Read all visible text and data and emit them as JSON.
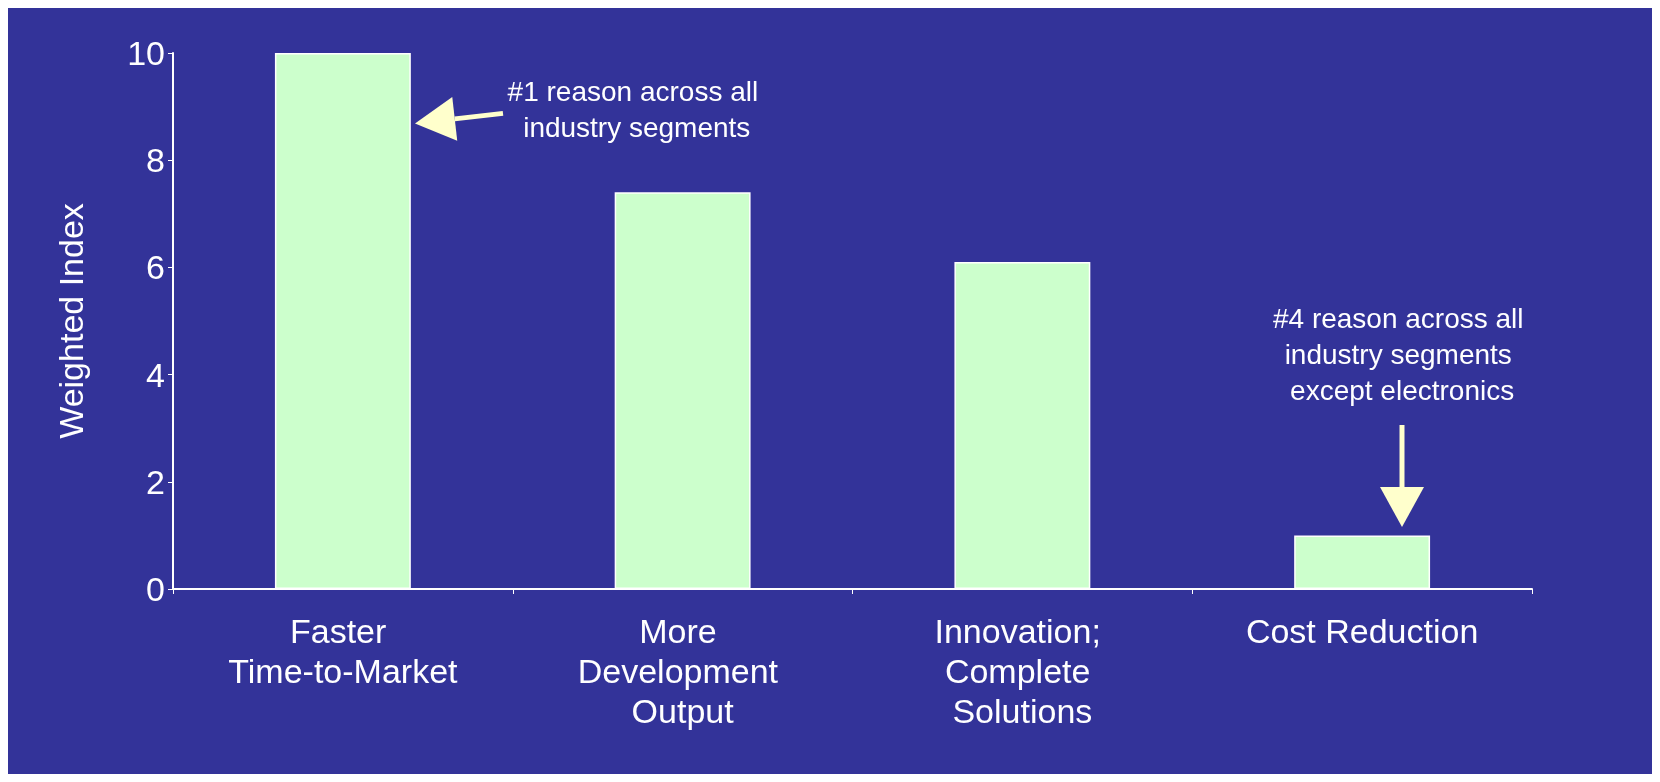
{
  "chart_data": {
    "type": "bar",
    "ylabel": "Weighted Index",
    "categories": [
      "Faster Time-to-Market",
      "More Development Output",
      "Innovation; Complete Solutions",
      "Cost Reduction"
    ],
    "values": [
      10,
      7.4,
      6.1,
      1.0
    ],
    "color": "#ccffcc",
    "ylim": [
      0,
      10
    ],
    "yticks": [
      0,
      2,
      4,
      6,
      8,
      10
    ],
    "grid": false,
    "annotations": [
      "#1 reason across all industry segments",
      "#4 reason across all industry segments except electronics"
    ]
  }
}
